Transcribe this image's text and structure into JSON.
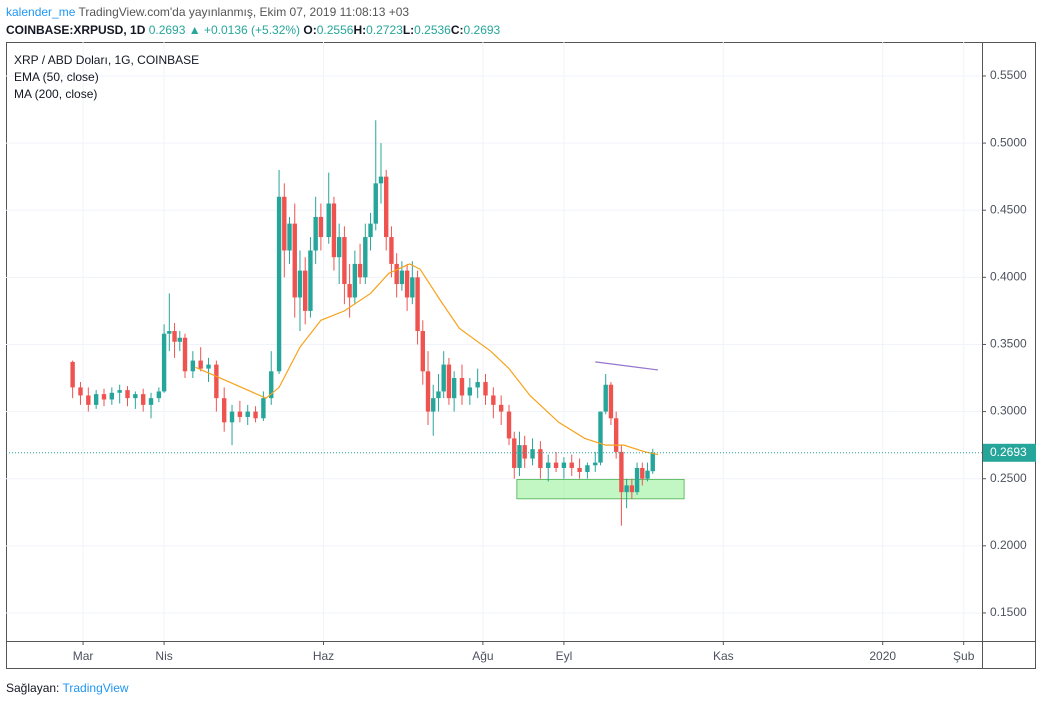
{
  "header": {
    "user": "kalender_me",
    "published": "TradingView.com'da yayınlanmış, Ekim 07, 2019 11:08:13 +03",
    "symbol": "COINBASE:XRPUSD, 1D",
    "last": "0.2693",
    "arrow": "▲",
    "change": "+0.0136 (+5.32%)",
    "ohlc": [
      {
        "label": "O:",
        "value": "0.2556"
      },
      {
        "label": "H:",
        "value": "0.2723"
      },
      {
        "label": "L:",
        "value": "0.2536"
      },
      {
        "label": "C:",
        "value": "0.2693"
      }
    ]
  },
  "footer": {
    "provider": "Sağlayan:",
    "brand": "TradingView"
  },
  "chart_data": {
    "type": "candlestick",
    "title": "XRP / ABD Doları, 1G, COINBASE",
    "x": [
      -4,
      -1,
      2,
      5,
      8,
      11,
      14,
      17,
      20,
      23,
      26,
      29,
      31,
      33,
      35,
      37,
      39,
      42,
      45,
      48,
      51,
      54,
      57,
      60,
      63,
      66,
      69,
      72,
      75,
      77,
      79,
      81,
      83,
      85,
      87,
      89,
      91,
      94,
      96,
      98,
      100,
      102,
      104,
      106,
      108,
      110,
      112,
      114,
      116,
      118,
      120,
      122,
      124,
      126,
      128,
      130,
      132,
      134,
      136,
      138,
      140,
      142,
      145,
      148,
      151,
      154,
      157,
      160,
      163,
      165,
      167,
      169,
      172,
      175,
      178,
      181,
      184,
      187,
      190,
      193,
      196,
      198,
      200,
      202,
      204,
      206,
      208,
      210,
      212,
      214,
      216,
      218
    ],
    "open": [
      0.337,
      0.318,
      0.312,
      0.305,
      0.313,
      0.309,
      0.314,
      0.316,
      0.31,
      0.313,
      0.305,
      0.31,
      0.315,
      0.358,
      0.36,
      0.352,
      0.355,
      0.33,
      0.338,
      0.332,
      0.335,
      0.31,
      0.292,
      0.3,
      0.296,
      0.3,
      0.295,
      0.31,
      0.33,
      0.46,
      0.42,
      0.44,
      0.385,
      0.405,
      0.375,
      0.42,
      0.445,
      0.43,
      0.455,
      0.415,
      0.43,
      0.395,
      0.385,
      0.41,
      0.4,
      0.43,
      0.44,
      0.47,
      0.475,
      0.43,
      0.41,
      0.395,
      0.405,
      0.385,
      0.4,
      0.36,
      0.33,
      0.3,
      0.31,
      0.315,
      0.335,
      0.31,
      0.325,
      0.312,
      0.318,
      0.322,
      0.312,
      0.305,
      0.3,
      0.28,
      0.258,
      0.275,
      0.265,
      0.272,
      0.258,
      0.262,
      0.258,
      0.262,
      0.258,
      0.255,
      0.26,
      0.262,
      0.3,
      0.32,
      0.295,
      0.27,
      0.24,
      0.245,
      0.24,
      0.258,
      0.25,
      0.2556
    ],
    "high": [
      0.338,
      0.322,
      0.318,
      0.316,
      0.317,
      0.318,
      0.32,
      0.319,
      0.315,
      0.317,
      0.314,
      0.318,
      0.365,
      0.388,
      0.366,
      0.36,
      0.358,
      0.345,
      0.348,
      0.34,
      0.338,
      0.318,
      0.305,
      0.308,
      0.305,
      0.304,
      0.315,
      0.345,
      0.48,
      0.47,
      0.445,
      0.455,
      0.42,
      0.415,
      0.43,
      0.46,
      0.455,
      0.478,
      0.46,
      0.44,
      0.438,
      0.41,
      0.42,
      0.425,
      0.44,
      0.448,
      0.517,
      0.5,
      0.48,
      0.438,
      0.418,
      0.412,
      0.41,
      0.412,
      0.405,
      0.368,
      0.345,
      0.32,
      0.328,
      0.345,
      0.34,
      0.33,
      0.335,
      0.325,
      0.332,
      0.328,
      0.318,
      0.312,
      0.305,
      0.285,
      0.285,
      0.282,
      0.28,
      0.278,
      0.268,
      0.27,
      0.266,
      0.268,
      0.265,
      0.262,
      0.27,
      0.3,
      0.328,
      0.322,
      0.3,
      0.275,
      0.25,
      0.25,
      0.262,
      0.262,
      0.262,
      0.2723
    ],
    "low": [
      0.31,
      0.305,
      0.3,
      0.302,
      0.304,
      0.305,
      0.306,
      0.304,
      0.302,
      0.3,
      0.295,
      0.307,
      0.314,
      0.345,
      0.34,
      0.345,
      0.325,
      0.325,
      0.33,
      0.322,
      0.3,
      0.285,
      0.275,
      0.292,
      0.29,
      0.292,
      0.293,
      0.305,
      0.328,
      0.4,
      0.41,
      0.37,
      0.36,
      0.365,
      0.37,
      0.41,
      0.42,
      0.425,
      0.405,
      0.395,
      0.38,
      0.37,
      0.38,
      0.395,
      0.395,
      0.42,
      0.435,
      0.455,
      0.42,
      0.4,
      0.385,
      0.39,
      0.375,
      0.38,
      0.35,
      0.32,
      0.29,
      0.282,
      0.3,
      0.31,
      0.305,
      0.3,
      0.305,
      0.305,
      0.31,
      0.305,
      0.295,
      0.29,
      0.275,
      0.25,
      0.252,
      0.258,
      0.26,
      0.25,
      0.248,
      0.255,
      0.25,
      0.252,
      0.25,
      0.25,
      0.255,
      0.26,
      0.298,
      0.29,
      0.265,
      0.215,
      0.228,
      0.235,
      0.238,
      0.245,
      0.248,
      0.2536
    ],
    "close": [
      0.318,
      0.312,
      0.305,
      0.313,
      0.309,
      0.314,
      0.316,
      0.31,
      0.313,
      0.305,
      0.31,
      0.315,
      0.358,
      0.36,
      0.352,
      0.355,
      0.33,
      0.338,
      0.332,
      0.335,
      0.31,
      0.292,
      0.3,
      0.296,
      0.3,
      0.295,
      0.31,
      0.33,
      0.46,
      0.42,
      0.44,
      0.385,
      0.405,
      0.375,
      0.42,
      0.445,
      0.43,
      0.455,
      0.415,
      0.43,
      0.395,
      0.385,
      0.41,
      0.4,
      0.43,
      0.44,
      0.47,
      0.475,
      0.43,
      0.41,
      0.395,
      0.405,
      0.385,
      0.4,
      0.36,
      0.33,
      0.3,
      0.31,
      0.315,
      0.335,
      0.31,
      0.325,
      0.312,
      0.318,
      0.322,
      0.312,
      0.305,
      0.3,
      0.28,
      0.258,
      0.275,
      0.265,
      0.272,
      0.258,
      0.262,
      0.258,
      0.262,
      0.258,
      0.255,
      0.26,
      0.262,
      0.3,
      0.32,
      0.295,
      0.27,
      0.24,
      0.245,
      0.24,
      0.258,
      0.25,
      0.256,
      0.2693
    ],
    "up_color": "#26a69a",
    "down_color": "#ef5350",
    "series": [
      {
        "name": "EMA (50, close)",
        "color": "#f7a21b",
        "x": [
          43,
          56,
          70,
          75,
          83,
          91,
          100,
          110,
          117,
          125,
          129,
          137,
          144,
          156,
          163,
          171,
          182,
          192,
          200,
          207,
          215,
          220
        ],
        "values": [
          0.333,
          0.322,
          0.31,
          0.318,
          0.348,
          0.368,
          0.375,
          0.388,
          0.403,
          0.41,
          0.406,
          0.382,
          0.362,
          0.345,
          0.332,
          0.312,
          0.292,
          0.28,
          0.275,
          0.275,
          0.27,
          0.268
        ]
      },
      {
        "name": "MA (200, close)",
        "color": "#9575cd",
        "x": [
          196,
          220
        ],
        "values": [
          0.337,
          0.331
        ]
      }
    ],
    "zone": {
      "x": [
        166,
        230
      ],
      "y": [
        0.235,
        0.2495
      ],
      "color": "#90ee90"
    },
    "last_price": 0.2693,
    "xlim": [
      -29.5,
      344
    ],
    "ylim": [
      0.1291,
      0.5753
    ],
    "xticks": [
      {
        "value": 0,
        "label": "Mar"
      },
      {
        "value": 31,
        "label": "Nis"
      },
      {
        "value": 92,
        "label": "Haz"
      },
      {
        "value": 153,
        "label": "Ağu"
      },
      {
        "value": 184,
        "label": "Eyl"
      },
      {
        "value": 245,
        "label": "Kas"
      },
      {
        "value": 306,
        "label": "2020"
      },
      {
        "value": 337,
        "label": "Şub"
      }
    ],
    "yticks": [
      {
        "value": 0.15,
        "label": "0.1500"
      },
      {
        "value": 0.2,
        "label": "0.2000"
      },
      {
        "value": 0.25,
        "label": "0.2500"
      },
      {
        "value": 0.3,
        "label": "0.3000"
      },
      {
        "value": 0.35,
        "label": "0.3500"
      },
      {
        "value": 0.4,
        "label": "0.4000"
      },
      {
        "value": 0.45,
        "label": "0.4500"
      },
      {
        "value": 0.5,
        "label": "0.5000"
      },
      {
        "value": 0.55,
        "label": "0.5500"
      }
    ],
    "grid": true
  }
}
